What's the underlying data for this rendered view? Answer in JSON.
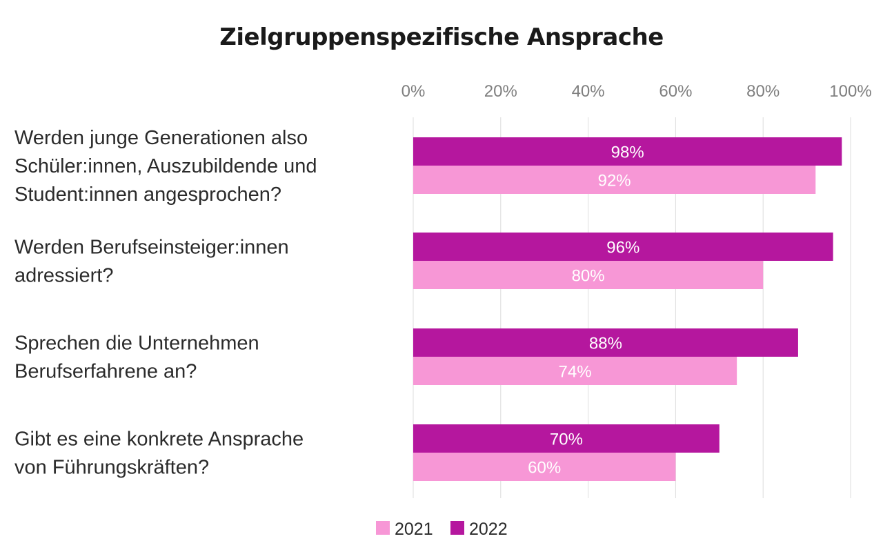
{
  "chart_data": {
    "type": "bar",
    "orientation": "horizontal",
    "title": "Zielgruppenspezifische Ansprache",
    "categories": [
      [
        "Werden junge Generationen also",
        "Schüler:innen, Auszubildende und",
        "Student:innen angesprochen?"
      ],
      [
        "Werden Berufseinsteiger:innen",
        "adressiert?"
      ],
      [
        "Sprechen die Unternehmen",
        "Berufserfahrene an?"
      ],
      [
        "Gibt es eine konkrete Ansprache",
        "von Führungskräften?"
      ]
    ],
    "series": [
      {
        "name": "2022",
        "color": "#b5179e",
        "values": [
          98,
          96,
          88,
          70
        ],
        "labels": [
          "98%",
          "96%",
          "88%",
          "70%"
        ]
      },
      {
        "name": "2021",
        "color": "#f797d6",
        "values": [
          92,
          80,
          74,
          60
        ],
        "labels": [
          "92%",
          "80%",
          "74%",
          "60%"
        ]
      }
    ],
    "xlim": [
      0,
      100
    ],
    "ticks": [
      0,
      20,
      40,
      60,
      80,
      100
    ],
    "tick_labels": [
      "0%",
      "20%",
      "40%",
      "60%",
      "80%",
      "100%"
    ],
    "xaxis_position": "top",
    "grid": true,
    "legend_position": "bottom",
    "legend": [
      {
        "name": "2021",
        "color": "#f797d6"
      },
      {
        "name": "2022",
        "color": "#b5179e"
      }
    ]
  }
}
